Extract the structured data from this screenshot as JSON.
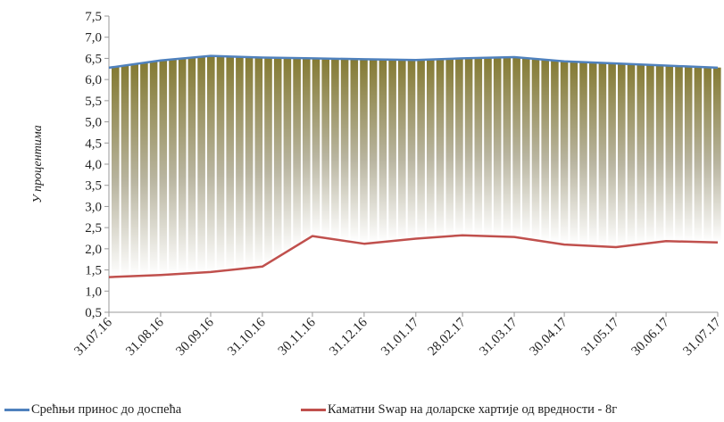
{
  "colors": {
    "yield_line": "#4f81bd",
    "swap_line": "#c0504d",
    "fill_top": "#847a33",
    "fill_bottom": "#ffffff",
    "axis": "#999999"
  },
  "chart_data": {
    "type": "line",
    "ylabel": "У процентима",
    "xlabel": "",
    "title": "",
    "ylim": [
      0.5,
      7.5
    ],
    "yticks": [
      "0,5",
      "1,0",
      "1,5",
      "2,0",
      "2,5",
      "3,0",
      "3,5",
      "4,0",
      "4,5",
      "5,0",
      "5,5",
      "6,0",
      "6,5",
      "7,0",
      "7,5"
    ],
    "x_tick_labels": [
      "31.07.16",
      "31.08.16",
      "30.09.16",
      "31.10.16",
      "30.11.16",
      "31.12.16",
      "31.01.17",
      "28.02.17",
      "31.03.17",
      "30.04.17",
      "31.05.17",
      "30.06.17",
      "31.07.17"
    ],
    "grid": false,
    "legend_position": "bottom",
    "series": [
      {
        "name": "Срећњи принос до доспећа",
        "x": [
          "31.07.16",
          "31.08.16",
          "30.09.16",
          "31.10.16",
          "30.11.16",
          "31.12.16",
          "31.01.17",
          "28.02.17",
          "31.03.17",
          "30.04.17",
          "31.05.17",
          "30.06.17",
          "31.07.17"
        ],
        "values": [
          6.28,
          6.45,
          6.56,
          6.52,
          6.5,
          6.48,
          6.46,
          6.5,
          6.53,
          6.43,
          6.38,
          6.33,
          6.28
        ]
      },
      {
        "name": "Каматни Swap на доларске хартије од вредности - 8г",
        "x": [
          "31.07.16",
          "31.08.16",
          "30.09.16",
          "31.10.16",
          "30.11.16",
          "31.12.16",
          "31.01.17",
          "28.02.17",
          "31.03.17",
          "30.04.17",
          "31.05.17",
          "30.06.17",
          "31.07.17"
        ],
        "values": [
          1.33,
          1.38,
          1.45,
          1.58,
          2.3,
          2.12,
          2.24,
          2.32,
          2.28,
          2.1,
          2.04,
          2.18,
          2.15
        ]
      }
    ]
  }
}
